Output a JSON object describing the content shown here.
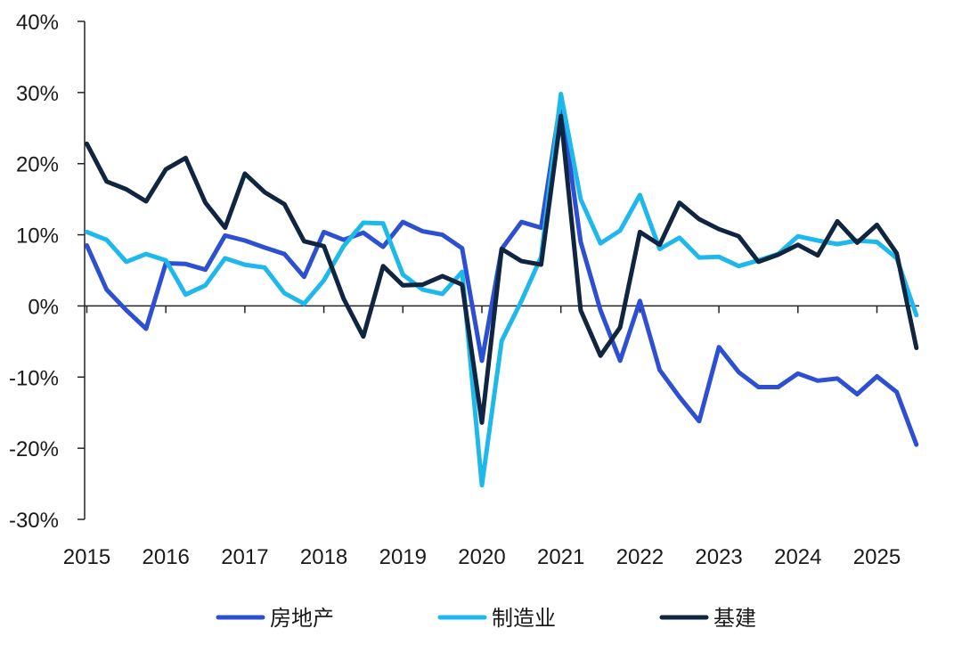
{
  "chart_data": {
    "type": "line",
    "title": "",
    "xlabel": "",
    "ylabel": "",
    "ylim": [
      -30,
      40
    ],
    "y_ticks": [
      -30,
      -20,
      -10,
      0,
      10,
      20,
      30,
      40
    ],
    "y_tick_labels": [
      "-30%",
      "-20%",
      "-10%",
      "0%",
      "10%",
      "20%",
      "30%",
      "40%"
    ],
    "x_tick_labels": [
      "2015",
      "2016",
      "2017",
      "2018",
      "2019",
      "2020",
      "2021",
      "2022",
      "2023",
      "2024",
      "2025"
    ],
    "x_frequency": "quarterly",
    "grid": false,
    "legend_position": "bottom",
    "series": [
      {
        "name": "房地产",
        "color": "#2d4fd1",
        "values": [
          8.5,
          2.3,
          -0.6,
          -3.2,
          6.0,
          5.9,
          5.1,
          9.9,
          9.2,
          8.2,
          7.3,
          4.1,
          10.4,
          9.3,
          10.3,
          8.3,
          11.8,
          10.5,
          10.0,
          8.1,
          -7.7,
          8.0,
          11.8,
          11.0,
          29.0,
          9.0,
          -0.6,
          -7.7,
          0.7,
          -9.0,
          -12.8,
          -16.2,
          -5.8,
          -9.3,
          -11.4,
          -11.4,
          -9.5,
          -10.5,
          -10.2,
          -12.4,
          -9.9,
          -12.1,
          -19.5
        ]
      },
      {
        "name": "制造业",
        "color": "#1fb8ea",
        "values": [
          10.4,
          9.3,
          6.2,
          7.3,
          6.4,
          1.6,
          2.9,
          6.7,
          5.8,
          5.4,
          1.8,
          0.3,
          3.6,
          8.4,
          11.7,
          11.6,
          4.4,
          2.3,
          1.7,
          4.8,
          -25.2,
          -4.9,
          0.7,
          6.9,
          29.8,
          15.0,
          8.8,
          10.6,
          15.6,
          8.0,
          9.6,
          6.8,
          6.9,
          5.6,
          6.4,
          7.3,
          9.8,
          9.2,
          8.7,
          9.2,
          9.0,
          6.7,
          -1.3
        ]
      },
      {
        "name": "基建",
        "color": "#0f2540",
        "values": [
          22.8,
          17.5,
          16.4,
          14.7,
          19.2,
          20.8,
          14.5,
          11.0,
          18.6,
          16.0,
          14.3,
          9.1,
          8.4,
          1.0,
          -4.3,
          5.6,
          2.9,
          3.0,
          4.2,
          3.0,
          -16.4,
          8.0,
          6.3,
          5.8,
          26.7,
          -0.6,
          -7.0,
          -3.0,
          10.4,
          8.6,
          14.5,
          12.2,
          10.8,
          9.8,
          6.2,
          7.2,
          8.6,
          7.1,
          11.9,
          8.9,
          11.4,
          7.4,
          -5.9
        ]
      }
    ]
  }
}
